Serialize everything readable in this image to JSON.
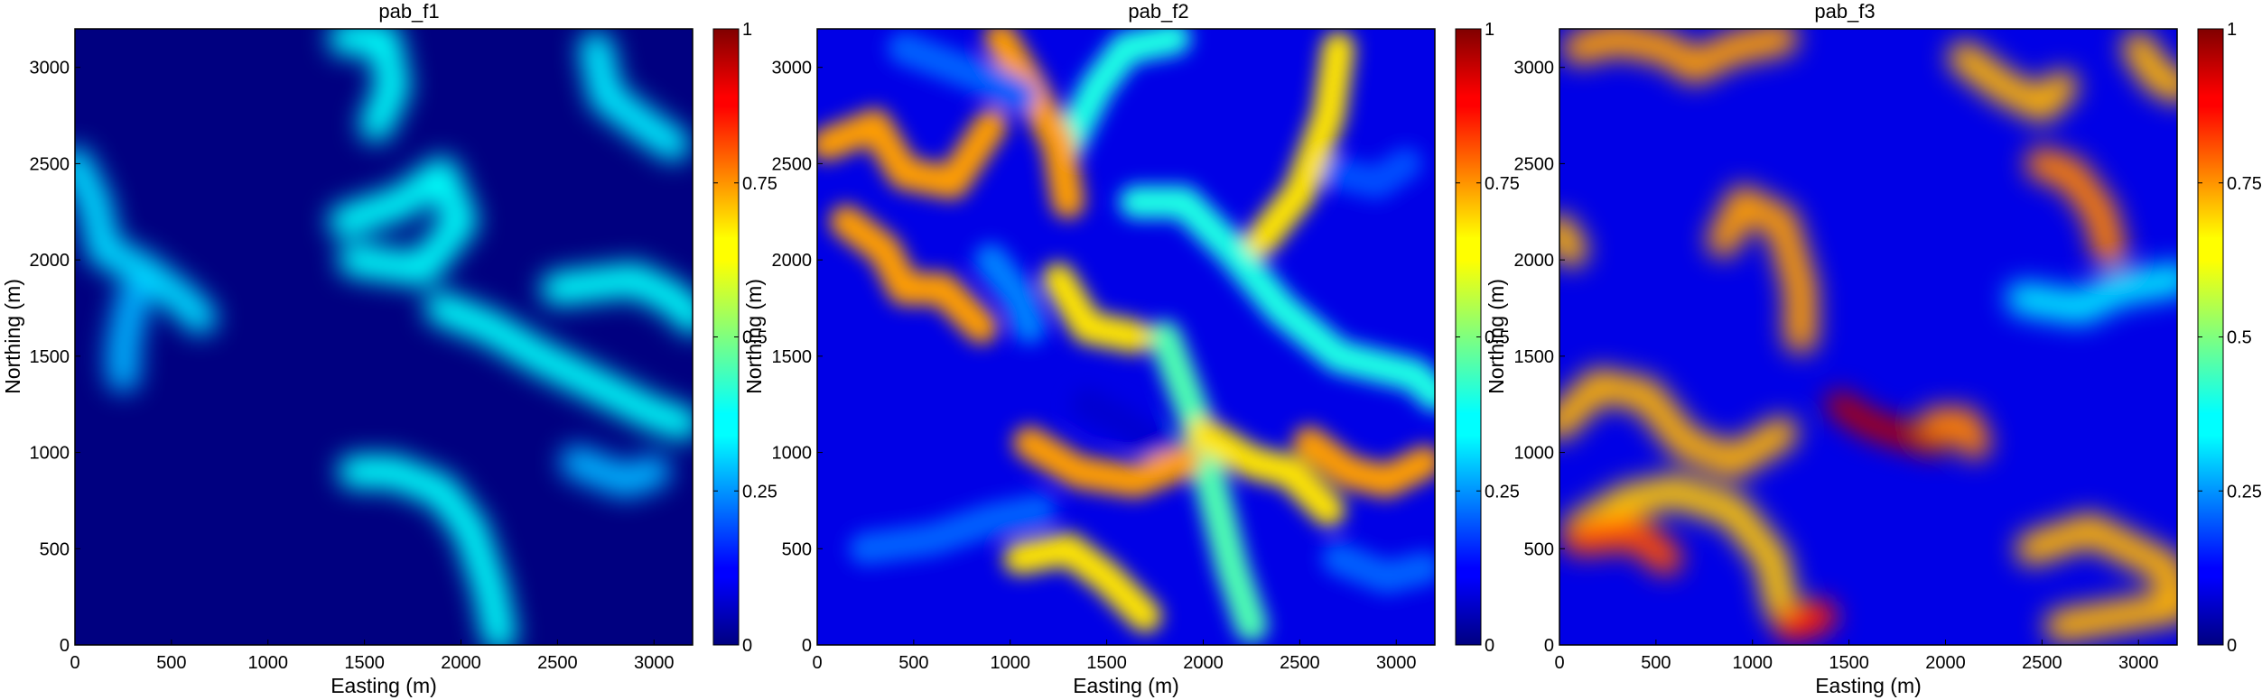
{
  "chart_data": [
    {
      "type": "heatmap",
      "title": "pab_f1",
      "xlabel": "Easting (m)",
      "ylabel": "Northing (m)",
      "xlim": [
        0,
        3200
      ],
      "ylim": [
        0,
        3200
      ],
      "x_ticks": [
        0,
        500,
        1000,
        1500,
        2000,
        2500,
        3000
      ],
      "y_ticks": [
        0,
        500,
        1000,
        1500,
        2000,
        2500,
        3000
      ],
      "colorbar": {
        "range": [
          0,
          1
        ],
        "ticks": [
          0,
          0.25,
          0.5,
          0.75,
          1
        ],
        "tick_labels": [
          "0",
          "0.25",
          "0.5",
          "0.75",
          "1"
        ],
        "colormap": "jet"
      },
      "value_range_observed": [
        0,
        0.4
      ],
      "regions": [
        {
          "shape": "blob",
          "value": 0.38,
          "pts": [
            [
              1400,
              3150
            ],
            [
              1600,
              3150
            ],
            [
              1650,
              2900
            ],
            [
              1560,
              2700
            ]
          ]
        },
        {
          "shape": "blob",
          "value": 0.38,
          "pts": [
            [
              1400,
              2200
            ],
            [
              1700,
              2300
            ],
            [
              1900,
              2450
            ],
            [
              2000,
              2200
            ],
            [
              1800,
              1950
            ],
            [
              1450,
              2000
            ]
          ]
        },
        {
          "shape": "blob",
          "value": 0.38,
          "pts": [
            [
              1900,
              1750
            ],
            [
              2150,
              1650
            ],
            [
              2400,
              1500
            ],
            [
              2700,
              1350
            ],
            [
              3000,
              1200
            ],
            [
              3150,
              1150
            ]
          ]
        },
        {
          "shape": "blob",
          "value": 0.38,
          "pts": [
            [
              2500,
              1850
            ],
            [
              2900,
              1900
            ],
            [
              3100,
              1800
            ],
            [
              3200,
              1700
            ]
          ]
        },
        {
          "shape": "blob",
          "value": 0.38,
          "pts": [
            [
              1450,
              900
            ],
            [
              1650,
              900
            ],
            [
              1900,
              800
            ],
            [
              2050,
              600
            ],
            [
              2150,
              300
            ],
            [
              2200,
              50
            ]
          ]
        },
        {
          "shape": "blob",
          "value": 0.36,
          "pts": [
            [
              2700,
              3100
            ],
            [
              2750,
              2850
            ],
            [
              2950,
              2700
            ],
            [
              3100,
              2600
            ]
          ]
        },
        {
          "shape": "blob",
          "value": 0.34,
          "pts": [
            [
              0,
              2500
            ],
            [
              100,
              2300
            ],
            [
              150,
              2050
            ],
            [
              350,
              1950
            ],
            [
              550,
              1800
            ],
            [
              650,
              1700
            ]
          ]
        },
        {
          "shape": "blob",
          "value": 0.3,
          "pts": [
            [
              2600,
              950
            ],
            [
              2850,
              850
            ],
            [
              3000,
              900
            ]
          ]
        },
        {
          "shape": "blob",
          "value": 0.3,
          "pts": [
            [
              300,
              1800
            ],
            [
              250,
              1550
            ],
            [
              250,
              1400
            ]
          ]
        }
      ]
    },
    {
      "type": "heatmap",
      "title": "pab_f2",
      "xlabel": "Easting (m)",
      "ylabel": "Northing (m)",
      "xlim": [
        0,
        3200
      ],
      "ylim": [
        0,
        3200
      ],
      "x_ticks": [
        0,
        500,
        1000,
        1500,
        2000,
        2500,
        3000
      ],
      "y_ticks": [
        0,
        500,
        1000,
        1500,
        2000,
        2500,
        3000
      ],
      "colorbar": {
        "range": [
          0,
          1
        ],
        "ticks": [
          0,
          0.25,
          0.5,
          0.75,
          1
        ],
        "tick_labels": [
          "0",
          "0.25",
          "0.5",
          "0.75",
          "1"
        ],
        "colormap": "jet"
      },
      "value_range_observed": [
        0.1,
        0.8
      ],
      "regions": [
        {
          "shape": "blob",
          "value": 0.4,
          "pts": [
            [
              1650,
              2300
            ],
            [
              1900,
              2300
            ],
            [
              2150,
              2050
            ],
            [
              2400,
              1750
            ],
            [
              2700,
              1500
            ],
            [
              3100,
              1400
            ],
            [
              3200,
              1300
            ]
          ]
        },
        {
          "shape": "blob",
          "value": 0.45,
          "pts": [
            [
              1800,
              1600
            ],
            [
              1950,
              1200
            ],
            [
              2050,
              800
            ],
            [
              2150,
              400
            ],
            [
              2250,
              100
            ]
          ]
        },
        {
          "shape": "blob",
          "value": 0.4,
          "pts": [
            [
              1300,
              2600
            ],
            [
              1450,
              2900
            ],
            [
              1600,
              3100
            ],
            [
              1850,
              3150
            ]
          ]
        },
        {
          "shape": "blob",
          "value": 0.72,
          "pts": [
            [
              50,
              2600
            ],
            [
              300,
              2700
            ],
            [
              450,
              2450
            ],
            [
              700,
              2400
            ],
            [
              900,
              2700
            ]
          ]
        },
        {
          "shape": "blob",
          "value": 0.72,
          "pts": [
            [
              150,
              2200
            ],
            [
              350,
              2050
            ],
            [
              450,
              1850
            ],
            [
              650,
              1850
            ],
            [
              850,
              1650
            ]
          ]
        },
        {
          "shape": "blob",
          "value": 0.72,
          "pts": [
            [
              950,
              3150
            ],
            [
              1100,
              2900
            ],
            [
              1250,
              2600
            ],
            [
              1300,
              2300
            ]
          ]
        },
        {
          "shape": "blob",
          "value": 0.72,
          "pts": [
            [
              2550,
              1050
            ],
            [
              2750,
              900
            ],
            [
              2950,
              850
            ],
            [
              3150,
              950
            ]
          ]
        },
        {
          "shape": "blob",
          "value": 0.65,
          "pts": [
            [
              2000,
              1100
            ],
            [
              2250,
              950
            ],
            [
              2450,
              900
            ],
            [
              2650,
              700
            ]
          ]
        },
        {
          "shape": "blob",
          "value": 0.65,
          "pts": [
            [
              2300,
              2100
            ],
            [
              2500,
              2350
            ],
            [
              2650,
              2750
            ],
            [
              2700,
              3100
            ]
          ]
        },
        {
          "shape": "blob",
          "value": 0.65,
          "pts": [
            [
              1250,
              1900
            ],
            [
              1400,
              1650
            ],
            [
              1650,
              1600
            ]
          ]
        },
        {
          "shape": "blob",
          "value": 0.2,
          "pts": [
            [
              2700,
              2450
            ],
            [
              2900,
              2400
            ],
            [
              3050,
              2500
            ]
          ]
        },
        {
          "shape": "blob",
          "value": 0.22,
          "pts": [
            [
              250,
              500
            ],
            [
              600,
              550
            ],
            [
              900,
              650
            ],
            [
              1150,
              700
            ]
          ]
        },
        {
          "shape": "blob",
          "value": 0.22,
          "pts": [
            [
              2700,
              450
            ],
            [
              2950,
              350
            ],
            [
              3150,
              400
            ]
          ]
        },
        {
          "shape": "blob",
          "value": 0.22,
          "pts": [
            [
              450,
              3100
            ],
            [
              850,
              2950
            ],
            [
              1050,
              2850
            ]
          ]
        },
        {
          "shape": "blob",
          "value": 0.25,
          "pts": [
            [
              900,
              2000
            ],
            [
              1050,
              1800
            ],
            [
              1100,
              1650
            ]
          ]
        },
        {
          "shape": "blob",
          "value": 0.08,
          "pts": [
            [
              1400,
              1250
            ],
            [
              1600,
              1150
            ],
            [
              1800,
              1000
            ]
          ]
        },
        {
          "shape": "blob",
          "value": 0.72,
          "pts": [
            [
              1100,
              1050
            ],
            [
              1350,
              900
            ],
            [
              1650,
              850
            ],
            [
              1900,
              950
            ]
          ]
        },
        {
          "shape": "blob",
          "value": 0.65,
          "pts": [
            [
              1050,
              450
            ],
            [
              1300,
              500
            ],
            [
              1500,
              350
            ],
            [
              1700,
              150
            ]
          ]
        }
      ]
    },
    {
      "type": "heatmap",
      "title": "pab_f3",
      "xlabel": "Easting (m)",
      "ylabel": "Northing (m)",
      "xlim": [
        0,
        3200
      ],
      "ylim": [
        0,
        3200
      ],
      "x_ticks": [
        0,
        500,
        1000,
        1500,
        2000,
        2500,
        3000
      ],
      "y_ticks": [
        0,
        500,
        1000,
        1500,
        2000,
        2500,
        3000
      ],
      "colorbar": {
        "range": [
          0,
          1
        ],
        "ticks": [
          0,
          0.25,
          0.5,
          0.75,
          1
        ],
        "tick_labels": [
          "0",
          "0.25",
          "0.5",
          "0.75",
          "1"
        ],
        "colormap": "jet"
      },
      "value_range_observed": [
        0.1,
        0.95
      ],
      "regions": [
        {
          "shape": "blob",
          "value": 0.68,
          "pts": [
            [
              100,
              600
            ],
            [
              350,
              750
            ],
            [
              600,
              800
            ],
            [
              900,
              700
            ],
            [
              1100,
              450
            ],
            [
              1150,
              200
            ]
          ]
        },
        {
          "shape": "blob",
          "value": 0.7,
          "pts": [
            [
              0,
              1150
            ],
            [
              200,
              1350
            ],
            [
              450,
              1300
            ],
            [
              650,
              1050
            ],
            [
              900,
              950
            ],
            [
              1150,
              1100
            ]
          ]
        },
        {
          "shape": "blob",
          "value": 0.8,
          "pts": [
            [
              100,
              550
            ],
            [
              400,
              580
            ],
            [
              550,
              450
            ]
          ]
        },
        {
          "shape": "blob",
          "value": 0.95,
          "pts": [
            [
              1450,
              1250
            ],
            [
              1600,
              1150
            ],
            [
              1750,
              1100
            ],
            [
              1950,
              1050
            ]
          ]
        },
        {
          "shape": "blob",
          "value": 0.75,
          "pts": [
            [
              1950,
              1150
            ],
            [
              2100,
              1150
            ],
            [
              2150,
              1050
            ]
          ]
        },
        {
          "shape": "blob",
          "value": 0.72,
          "pts": [
            [
              100,
              3100
            ],
            [
              300,
              3150
            ],
            [
              550,
              3100
            ],
            [
              700,
              3000
            ],
            [
              900,
              3100
            ],
            [
              1150,
              3150
            ]
          ]
        },
        {
          "shape": "blob",
          "value": 0.7,
          "pts": [
            [
              2100,
              3050
            ],
            [
              2300,
              2900
            ],
            [
              2500,
              2800
            ],
            [
              2600,
              2900
            ]
          ]
        },
        {
          "shape": "blob",
          "value": 0.75,
          "pts": [
            [
              2500,
              2500
            ],
            [
              2650,
              2450
            ],
            [
              2800,
              2250
            ],
            [
              2850,
              2050
            ]
          ]
        },
        {
          "shape": "blob",
          "value": 0.7,
          "pts": [
            [
              3000,
              3100
            ],
            [
              3100,
              2950
            ],
            [
              3200,
              2900
            ]
          ]
        },
        {
          "shape": "blob",
          "value": 0.72,
          "pts": [
            [
              850,
              2100
            ],
            [
              950,
              2300
            ],
            [
              1150,
              2200
            ],
            [
              1250,
              1850
            ],
            [
              1250,
              1600
            ]
          ]
        },
        {
          "shape": "blob",
          "value": 0.7,
          "pts": [
            [
              2450,
              500
            ],
            [
              2750,
              600
            ],
            [
              2950,
              500
            ],
            [
              3150,
              400
            ],
            [
              3200,
              200
            ],
            [
              2600,
              100
            ]
          ]
        },
        {
          "shape": "blob",
          "value": 0.35,
          "pts": [
            [
              2400,
              1800
            ],
            [
              2700,
              1750
            ],
            [
              2900,
              1850
            ],
            [
              3200,
              1900
            ]
          ]
        },
        {
          "shape": "blob",
          "value": 0.7,
          "pts": [
            [
              0,
              2150
            ],
            [
              60,
              2050
            ]
          ]
        },
        {
          "shape": "blob",
          "value": 0.85,
          "pts": [
            [
              1200,
              100
            ],
            [
              1350,
              150
            ]
          ]
        }
      ]
    }
  ]
}
